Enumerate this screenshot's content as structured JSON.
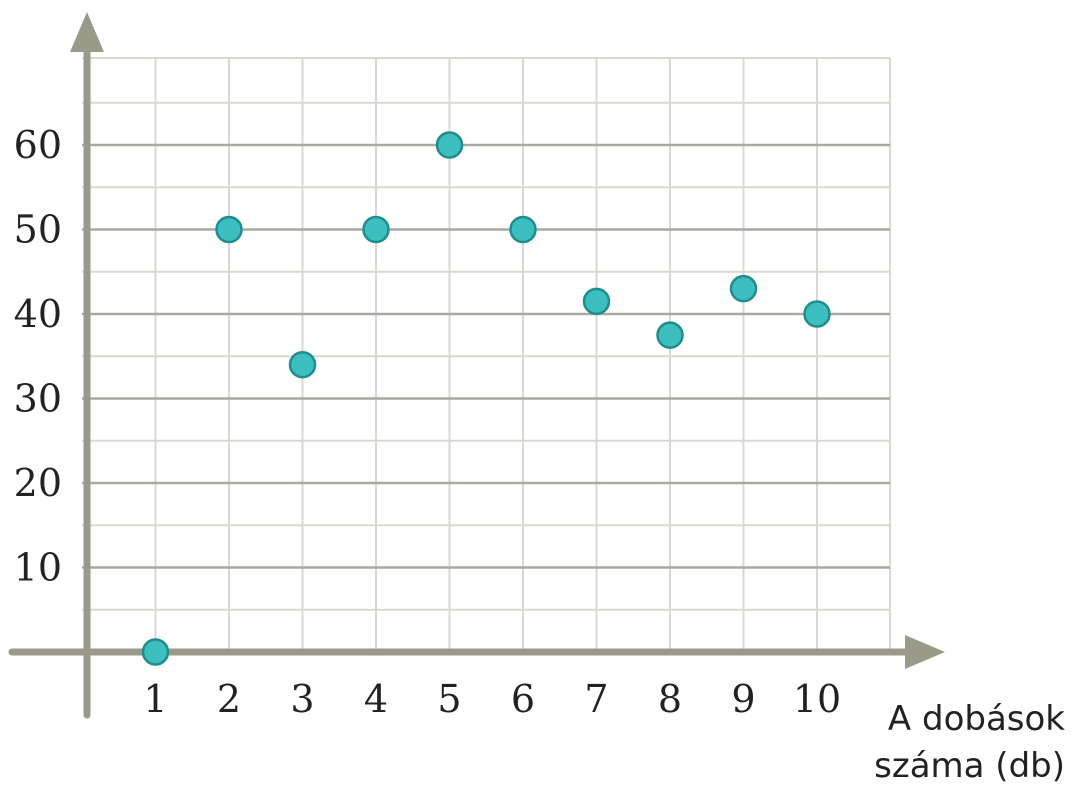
{
  "chart_data": {
    "type": "scatter",
    "title": "",
    "xlabel": [
      "A dobások",
      "száma (db)"
    ],
    "ylabel": "",
    "x_ticks": [
      "1",
      "2",
      "3",
      "4",
      "5",
      "6",
      "7",
      "8",
      "9",
      "10"
    ],
    "y_ticks": [
      "10",
      "20",
      "30",
      "40",
      "50",
      "60"
    ],
    "xlim": [
      0,
      10.75
    ],
    "ylim": [
      0,
      70
    ],
    "x": [
      1,
      2,
      3,
      4,
      5,
      6,
      7,
      8,
      9,
      10
    ],
    "y": [
      0,
      50,
      34,
      50,
      60,
      50,
      41.5,
      37.5,
      43,
      40
    ],
    "grid": true,
    "minor_grid_step": 5,
    "colors": {
      "point_fill": "#3dbfbf",
      "point_stroke": "#1f8d8d",
      "axis": "#9a9a8a",
      "grid_major": "#a9a9a0",
      "grid_minor": "#d9d9d2"
    }
  }
}
